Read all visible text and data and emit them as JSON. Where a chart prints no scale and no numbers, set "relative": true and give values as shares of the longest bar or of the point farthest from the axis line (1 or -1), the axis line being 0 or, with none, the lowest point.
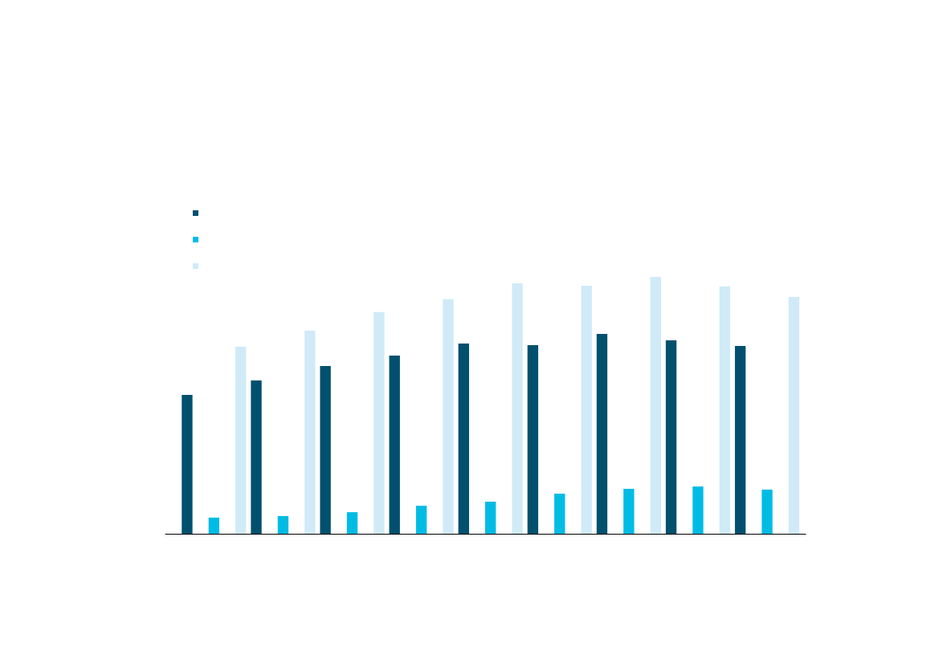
{
  "chart_data": {
    "type": "bar",
    "relative": true,
    "grid": false,
    "categories": [
      null,
      null,
      null,
      null,
      null,
      null,
      null,
      null,
      null
    ],
    "series": [
      {
        "color": "#00506e",
        "values": [
          0.541,
          0.597,
          0.653,
          0.694,
          0.741,
          0.734,
          0.778,
          0.753,
          0.731
        ]
      },
      {
        "color": "#00bce4",
        "values": [
          0.063,
          0.069,
          0.084,
          0.109,
          0.125,
          0.156,
          0.175,
          0.184,
          0.172
        ]
      },
      {
        "color": "#d0eaf8",
        "values": [
          0.728,
          0.791,
          0.863,
          0.913,
          0.975,
          0.966,
          1,
          0.963,
          0.922
        ]
      }
    ]
  }
}
